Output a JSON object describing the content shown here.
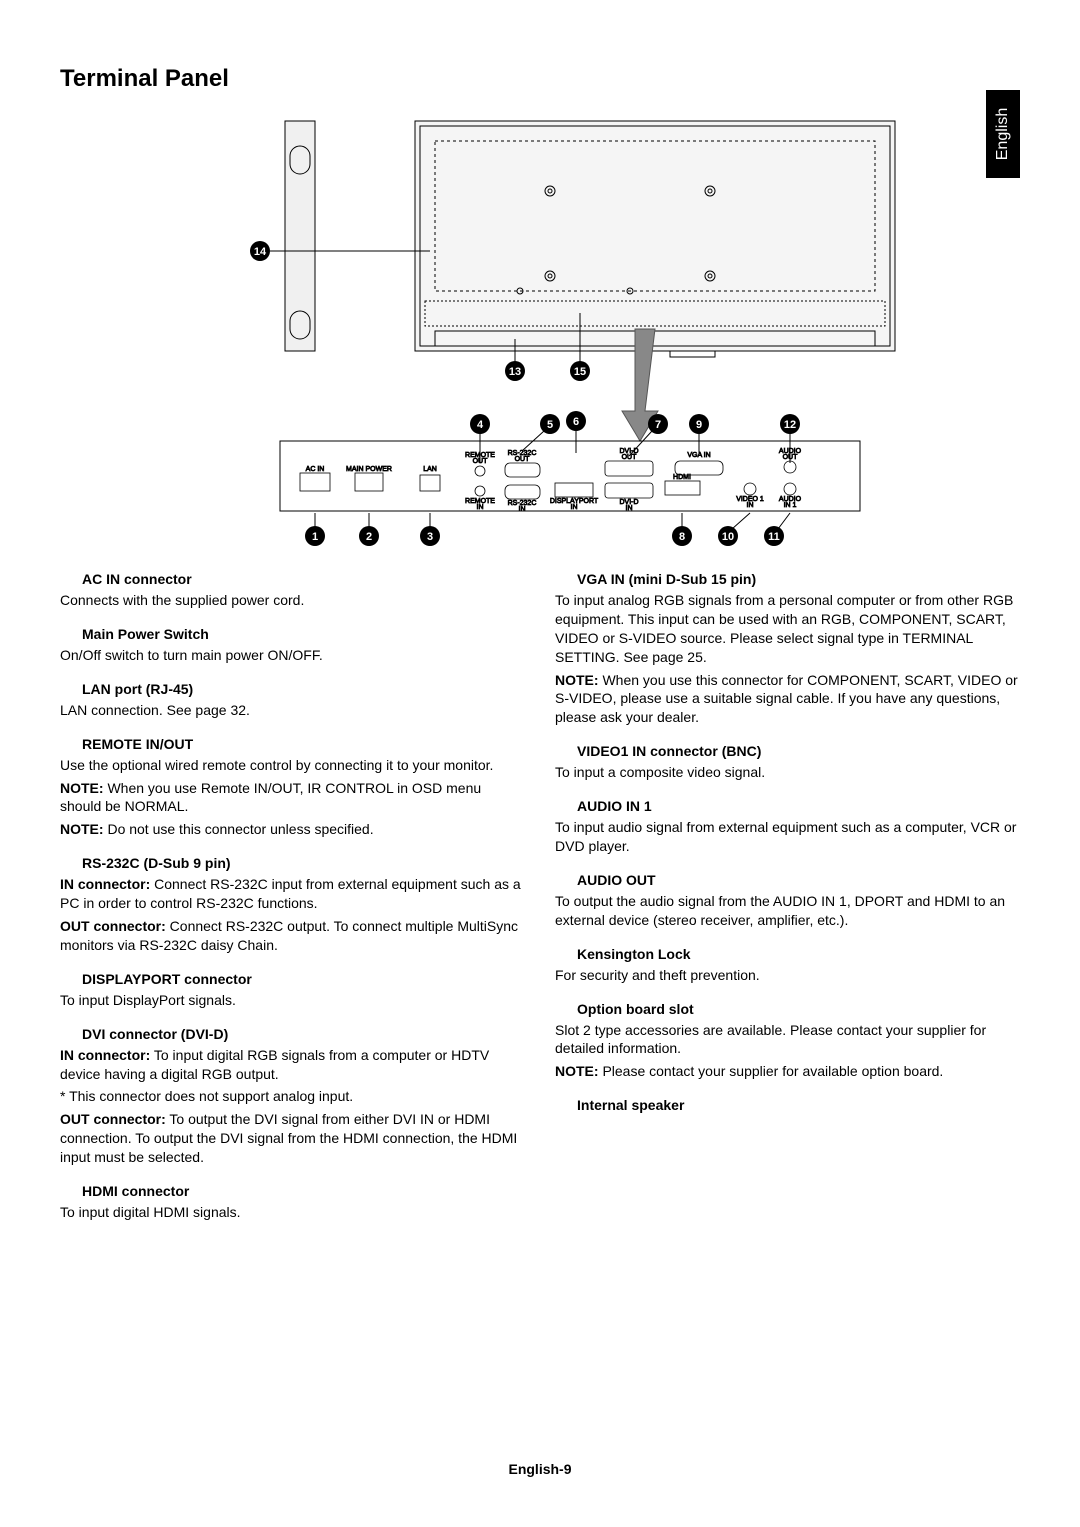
{
  "page": {
    "title": "Terminal Panel",
    "language_tab": "English",
    "footer": "English-9"
  },
  "diagram": {
    "callouts_top": {
      "c14": "14",
      "c13": "13",
      "c15": "15"
    },
    "callouts_mid_row": {
      "c4": "4",
      "c5": "5",
      "c6": "6",
      "c7": "7",
      "c9": "9",
      "c12": "12"
    },
    "callouts_bottom_row": {
      "c1": "1",
      "c2": "2",
      "c3": "3",
      "c8": "8",
      "c10": "10",
      "c11": "11"
    },
    "port_labels": {
      "ac_in": "AC IN",
      "main_power": "MAIN POWER",
      "lan": "LAN",
      "remote_out": "REMOTE\nOUT",
      "remote_in": "REMOTE\nIN",
      "rs232c_out": "RS-232C\nOUT",
      "rs232c_in": "RS-232C\nIN",
      "displayport": "DISPLAYPORT\nIN",
      "dvid_out": "DVI-D\nOUT",
      "dvid_in": "DVI-D\nIN",
      "hdmi": "HDMI",
      "vga_in": "VGA IN",
      "video1_in": "VIDEO 1\nIN",
      "audio_out": "AUDIO\nOUT",
      "audio_in1": "AUDIO\nIN 1"
    }
  },
  "left_col": [
    {
      "heading": "AC IN connector",
      "body": [
        {
          "text": "Connects with the supplied power cord."
        }
      ]
    },
    {
      "heading": "Main Power Switch",
      "body": [
        {
          "text": "On/Off switch to turn main power ON/OFF."
        }
      ]
    },
    {
      "heading": "LAN port (RJ-45)",
      "body": [
        {
          "text": "LAN connection. See page 32."
        }
      ]
    },
    {
      "heading": "REMOTE IN/OUT",
      "body": [
        {
          "text": "Use the optional wired remote control by connecting it to your monitor."
        },
        {
          "bold": "NOTE:",
          "text": " When you use Remote IN/OUT, IR CONTROL in OSD menu should be NORMAL."
        },
        {
          "bold": "NOTE:",
          "text": " Do not use this connector unless specified."
        }
      ]
    },
    {
      "heading": "RS-232C (D-Sub 9 pin)",
      "body": [
        {
          "bold": "IN connector:",
          "text": " Connect RS-232C input from external equipment such as a PC in order to control RS-232C functions."
        },
        {
          "bold": "OUT connector:",
          "text": " Connect RS-232C output. To connect multiple MultiSync monitors via RS-232C daisy Chain."
        }
      ]
    },
    {
      "heading": "DISPLAYPORT connector",
      "body": [
        {
          "text": "To input DisplayPort signals."
        }
      ]
    },
    {
      "heading": "DVI connector (DVI-D)",
      "body": [
        {
          "bold": "IN connector:",
          "text": " To input digital RGB signals from a computer or HDTV device having a digital RGB output."
        },
        {
          "text": "* This connector does not support analog input."
        },
        {
          "bold": "OUT connector:",
          "text": " To output the DVI signal from either DVI IN or HDMI connection. To output the DVI signal from the HDMI connection, the HDMI input must be selected."
        }
      ]
    },
    {
      "heading": "HDMI connector",
      "body": [
        {
          "text": "To input digital HDMI signals."
        }
      ]
    }
  ],
  "right_col": [
    {
      "heading": "VGA IN (mini D-Sub 15 pin)",
      "body": [
        {
          "text": "To input analog RGB signals from a personal computer or from other RGB equipment. This input can be used with an RGB, COMPONENT, SCART, VIDEO or S-VIDEO source. Please select signal type in TERMINAL SETTING. See page 25."
        },
        {
          "bold": "NOTE:",
          "text": " When you use this connector for COMPONENT, SCART, VIDEO or S-VIDEO, please use a suitable signal cable. If you have any questions, please ask your dealer."
        }
      ]
    },
    {
      "heading": "VIDEO1 IN connector (BNC)",
      "body": [
        {
          "text": "To input a composite video signal."
        }
      ]
    },
    {
      "heading": "AUDIO IN 1",
      "body": [
        {
          "text": "To input audio signal from external equipment such as a computer, VCR or DVD player."
        }
      ]
    },
    {
      "heading": "AUDIO OUT",
      "body": [
        {
          "text": "To output the audio signal from the AUDIO IN 1, DPORT and HDMI to an external device (stereo receiver, amplifier, etc.)."
        }
      ]
    },
    {
      "heading": "Kensington Lock",
      "body": [
        {
          "text": "For security and theft prevention."
        }
      ]
    },
    {
      "heading": "Option board slot",
      "body": [
        {
          "text": "Slot 2 type accessories are available. Please contact your supplier for detailed information."
        },
        {
          "bold": "NOTE:",
          "text": " Please contact your supplier for available option board."
        }
      ]
    },
    {
      "heading": "Internal speaker",
      "body": []
    }
  ]
}
